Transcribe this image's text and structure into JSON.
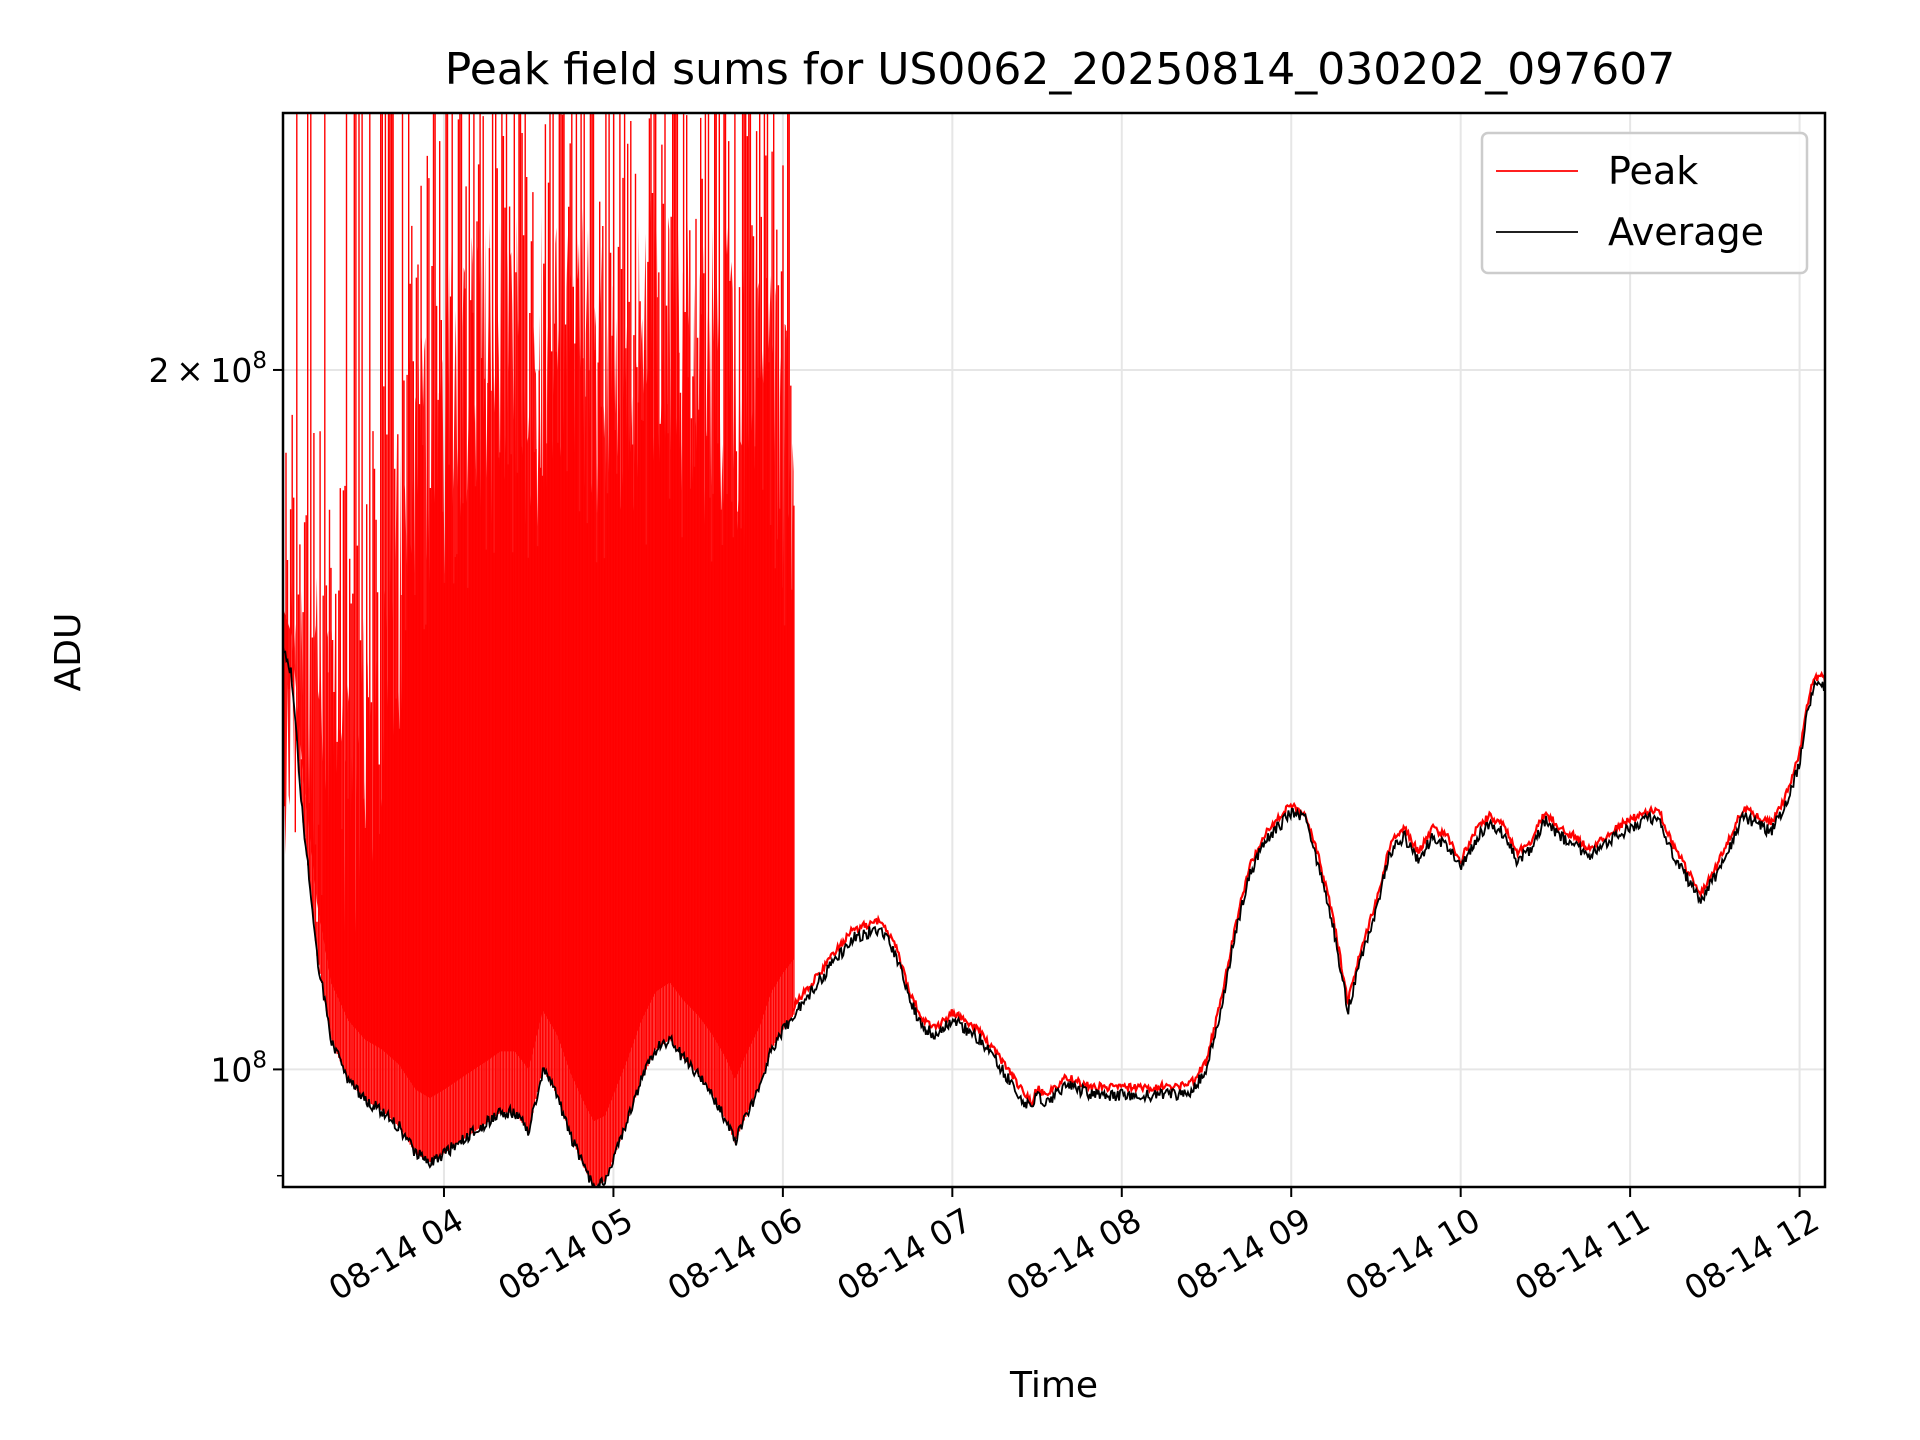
{
  "chart_data": {
    "type": "line",
    "title": "Peak field sums for US0062_20250814_030202_097607",
    "xlabel": "Time",
    "ylabel": "ADU",
    "y_scale": "log",
    "grid": true,
    "legend_placement": "top-right",
    "xlim": [
      "2025-08-14 03:03",
      "2025-08-14 12:09"
    ],
    "ylim": [
      89000000,
      258000000
    ],
    "x_ticks": [
      "08-14 04",
      "08-14 05",
      "08-14 06",
      "08-14 07",
      "08-14 08",
      "08-14 09",
      "08-14 10",
      "08-14 11",
      "08-14 12"
    ],
    "x_tick_times": [
      "2025-08-14 04:00",
      "2025-08-14 05:00",
      "2025-08-14 06:00",
      "2025-08-14 07:00",
      "2025-08-14 08:00",
      "2025-08-14 09:00",
      "2025-08-14 10:00",
      "2025-08-14 11:00",
      "2025-08-14 12:00"
    ],
    "y_ticks": [
      {
        "value": 100000000,
        "mantissa": "",
        "exponent": "8"
      },
      {
        "value": 200000000,
        "mantissa": "2",
        "exponent": "8"
      }
    ],
    "series": [
      {
        "name": "Average",
        "color": "#000000",
        "x": [
          "03:03",
          "03:06",
          "03:10",
          "03:15",
          "03:20",
          "03:26",
          "03:32",
          "03:38",
          "03:44",
          "03:50",
          "03:55",
          "04:00",
          "04:08",
          "04:15",
          "04:20",
          "04:25",
          "04:30",
          "04:35",
          "04:40",
          "04:45",
          "04:50",
          "04:53",
          "04:57",
          "05:00",
          "05:05",
          "05:10",
          "05:15",
          "05:20",
          "05:25",
          "05:30",
          "05:35",
          "05:40",
          "05:43",
          "05:47",
          "05:52",
          "05:56",
          "06:00",
          "06:10",
          "06:20",
          "06:25",
          "06:30",
          "06:35",
          "06:40",
          "06:45",
          "06:50",
          "06:55",
          "07:00",
          "07:10",
          "07:20",
          "07:25",
          "07:28",
          "07:30",
          "07:33",
          "07:40",
          "07:50",
          "08:00",
          "08:10",
          "08:20",
          "08:25",
          "08:30",
          "08:35",
          "08:40",
          "08:45",
          "08:50",
          "08:55",
          "09:00",
          "09:05",
          "09:10",
          "09:15",
          "09:20",
          "09:25",
          "09:30",
          "09:35",
          "09:40",
          "09:45",
          "09:50",
          "09:55",
          "10:00",
          "10:05",
          "10:10",
          "10:15",
          "10:20",
          "10:25",
          "10:30",
          "10:35",
          "10:40",
          "10:45",
          "10:50",
          "10:55",
          "11:00",
          "11:05",
          "11:10",
          "11:15",
          "11:20",
          "11:25",
          "11:30",
          "11:35",
          "11:40",
          "11:45",
          "11:50",
          "11:55",
          "12:00",
          "12:03",
          "12:05",
          "12:07",
          "12:09"
        ],
        "values": [
          152000000,
          148000000,
          128000000,
          112000000,
          103000000,
          99000000,
          97000000,
          96000000,
          94500000,
          92000000,
          91200000,
          92000000,
          93500000,
          94800000,
          95800000,
          95800000,
          94000000,
          100000000,
          97500000,
          93500000,
          90500000,
          89000000,
          89500000,
          91500000,
          95000000,
          99000000,
          102000000,
          103000000,
          101000000,
          99500000,
          97500000,
          95000000,
          93000000,
          95500000,
          98500000,
          102000000,
          104000000,
          108000000,
          112000000,
          114000000,
          114500000,
          115000000,
          112000000,
          107000000,
          104000000,
          103500000,
          105000000,
          103000000,
          99000000,
          97000000,
          96000000,
          97500000,
          96500000,
          98500000,
          97500000,
          97500000,
          97500000,
          97500000,
          98000000,
          100000000,
          106000000,
          114000000,
          121000000,
          125000000,
          127000000,
          129000000,
          128000000,
          122000000,
          115000000,
          106000000,
          112000000,
          117000000,
          124000000,
          126000000,
          123000000,
          126000000,
          125000000,
          122000000,
          125500000,
          127500000,
          126500000,
          123000000,
          124500000,
          128000000,
          126000000,
          125000000,
          123500000,
          124500000,
          126000000,
          127000000,
          128000000,
          128500000,
          124000000,
          121000000,
          118000000,
          121000000,
          124500000,
          128500000,
          127500000,
          126500000,
          130000000,
          135500000,
          143000000,
          146000000,
          146500000,
          146000000
        ]
      },
      {
        "name": "Peak",
        "color": "#ff0000",
        "dense_until": "06:04",
        "dense_baseline_offset": 6000000,
        "spike_max": 258000000,
        "dense_top_x": [
          "03:03",
          "03:10",
          "03:20",
          "03:30",
          "03:40",
          "03:50",
          "04:00",
          "04:10",
          "04:20",
          "04:30",
          "04:40",
          "04:45",
          "04:50",
          "05:00",
          "05:10",
          "05:20",
          "05:30",
          "05:40",
          "05:50",
          "06:00",
          "06:04"
        ],
        "dense_top_values": [
          168000000,
          170000000,
          160000000,
          156000000,
          180000000,
          210000000,
          225000000,
          230000000,
          238000000,
          232000000,
          240000000,
          245000000,
          235000000,
          230000000,
          238000000,
          242000000,
          236000000,
          232000000,
          228000000,
          222000000,
          210000000
        ]
      }
    ]
  }
}
